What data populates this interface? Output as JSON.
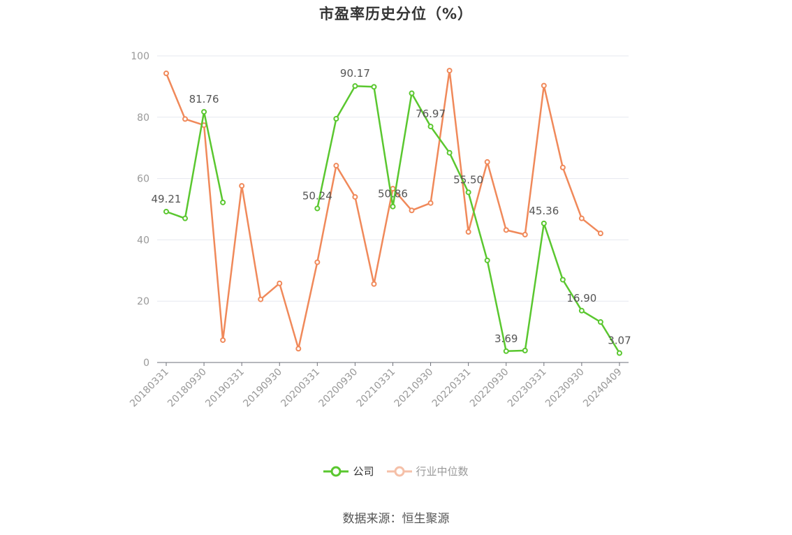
{
  "chart_data": {
    "type": "line",
    "title": "市盈率历史分位（%）",
    "ylim": [
      0,
      100
    ],
    "yticks": [
      0,
      20,
      40,
      60,
      80,
      100
    ],
    "grid": true,
    "legend_position": "bottom",
    "x": [
      "20180331",
      "20180630",
      "20180930",
      "20181231",
      "20190331",
      "20190630",
      "20190930",
      "20191231",
      "20200331",
      "20200630",
      "20200930",
      "20201231",
      "20210331",
      "20210630",
      "20210930",
      "20211231",
      "20220331",
      "20220630",
      "20220930",
      "20221231",
      "20230331",
      "20230630",
      "20230930",
      "20231231",
      "20240409"
    ],
    "xtick_labels": [
      "20180331",
      "20180930",
      "20190331",
      "20190930",
      "20200331",
      "20200930",
      "20210331",
      "20210930",
      "20220331",
      "20220930",
      "20230331",
      "20230930",
      "20240409"
    ],
    "series": [
      {
        "name": "公司",
        "color": "#5ac72f",
        "values": [
          49.21,
          47.0,
          81.76,
          52.2,
          null,
          null,
          null,
          null,
          50.24,
          79.5,
          90.17,
          89.9,
          50.86,
          87.8,
          76.97,
          68.4,
          55.5,
          33.3,
          3.69,
          3.9,
          45.36,
          27.0,
          16.9,
          13.2,
          3.07
        ],
        "labels": [
          "49.21",
          "",
          "81.76",
          "",
          "",
          "",
          "",
          "",
          "50.24",
          "",
          "90.17",
          "",
          "50.86",
          "",
          "76.97",
          "",
          "55.50",
          "",
          "3.69",
          "",
          "45.36",
          "",
          "16.90",
          "",
          "3.07"
        ]
      },
      {
        "name": "行业中位数",
        "color": "#f0895a",
        "values": [
          94.3,
          79.4,
          77.4,
          7.3,
          57.6,
          20.6,
          25.8,
          4.5,
          32.7,
          64.2,
          54.0,
          25.6,
          56.7,
          49.6,
          52.0,
          95.2,
          42.6,
          65.4,
          43.2,
          41.7,
          90.3,
          63.6,
          47.0,
          42.1,
          null
        ]
      }
    ]
  },
  "source_text": "数据来源：恒生聚源"
}
